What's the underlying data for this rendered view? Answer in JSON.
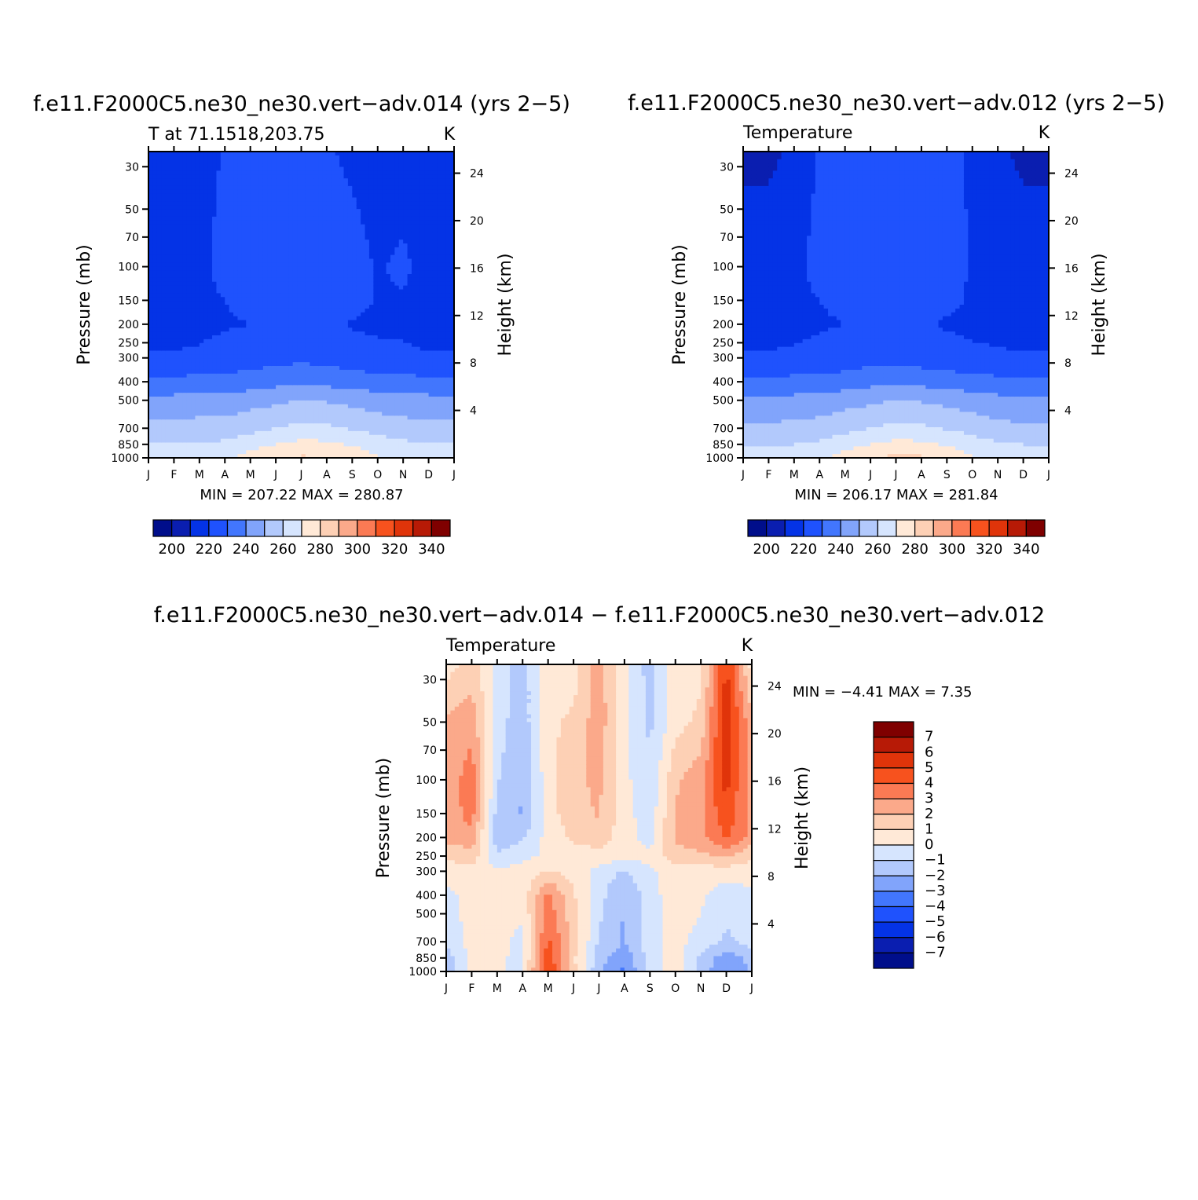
{
  "figure": {
    "panel_a_title": "f.e11.F2000C5.ne30_ne30.vert−adv.014 (yrs  2−5)",
    "panel_b_title": "f.e11.F2000C5.ne30_ne30.vert−adv.012 (yrs  2−5)",
    "panel_c_title": "f.e11.F2000C5.ne30_ne30.vert−adv.014  −  f.e11.F2000C5.ne30_ne30.vert−adv.012"
  },
  "chart_data": [
    {
      "type": "heatmap",
      "title": "f.e11.F2000C5.ne30_ne30.vert−adv.014 (yrs  2−5)",
      "subtitle": "T  at  71.1518,203.75",
      "units": "K",
      "ylabel": "Pressure  (mb)",
      "y2label": "Height  (km)",
      "x_ticks": [
        "J",
        "F",
        "M",
        "A",
        "M",
        "J",
        "J",
        "A",
        "S",
        "O",
        "N",
        "D",
        "J"
      ],
      "y_ticks": [
        30,
        50,
        70,
        100,
        150,
        200,
        250,
        300,
        400,
        500,
        700,
        850,
        1000
      ],
      "y2_ticks": [
        24,
        20,
        16,
        12,
        8,
        4
      ],
      "pressure_range_mb": [
        25,
        1000
      ],
      "min": 207.22,
      "max": 280.87,
      "stats": "MIN  =  207.22  MAX  =  280.87",
      "levels": [
        200,
        210,
        220,
        230,
        240,
        250,
        260,
        270,
        280,
        290,
        300,
        310,
        320,
        330,
        340
      ],
      "colorbar_labels": [
        "200",
        "220",
        "240",
        "260",
        "280",
        "300",
        "320",
        "340"
      ],
      "colors": [
        "#000e8b",
        "#0a1eb0",
        "#0433e6",
        "#1f52fd",
        "#4276fd",
        "#81a4fb",
        "#b2c9fc",
        "#d6e5fe",
        "#ffe9d7",
        "#fdd0b5",
        "#fba98a",
        "#fb7a54",
        "#f7521e",
        "#e0340a",
        "#b71a06",
        "#7f0000"
      ],
      "month_lines": {
        "pressures": [
          25,
          100,
          150,
          200,
          300,
          400,
          500,
          700,
          850,
          950,
          1000
        ],
        "z_months": [
          [
            213,
            213,
            215,
            221,
            221,
            221,
            221,
            221,
            218,
            215,
            214,
            213,
            213
          ],
          [
            216,
            216,
            217,
            224,
            226,
            226,
            226,
            226,
            224,
            219,
            222,
            216,
            216
          ],
          [
            216,
            216,
            217,
            220,
            223,
            226,
            226,
            226,
            224,
            219,
            219,
            216,
            216
          ],
          [
            216,
            216,
            217,
            219,
            220,
            222,
            224,
            222,
            219,
            218,
            218,
            216,
            216
          ],
          [
            221,
            221,
            222,
            224,
            225,
            226,
            228,
            226,
            225,
            223,
            222,
            221,
            221
          ],
          [
            233,
            233,
            233,
            233,
            235,
            237,
            238,
            237,
            235,
            234,
            233,
            233,
            233
          ],
          [
            243,
            243,
            244,
            244,
            246,
            248,
            250,
            249,
            247,
            245,
            244,
            243,
            243
          ],
          [
            253,
            253,
            254,
            254,
            257,
            260,
            263,
            262,
            259,
            256,
            254,
            253,
            253
          ],
          [
            260,
            260,
            261,
            262,
            266,
            270,
            273,
            272,
            269,
            265,
            262,
            261,
            260
          ],
          [
            264,
            264,
            265,
            267,
            272,
            276,
            279,
            278,
            275,
            269,
            266,
            265,
            264
          ],
          [
            266,
            266,
            267,
            268,
            273,
            277,
            281,
            280,
            276,
            270,
            267,
            266,
            266
          ]
        ]
      }
    },
    {
      "type": "heatmap",
      "title": "f.e11.F2000C5.ne30_ne30.vert−adv.012 (yrs  2−5)",
      "subtitle": "Temperature",
      "units": "K",
      "ylabel": "Pressure  (mb)",
      "y2label": "Height  (km)",
      "x_ticks": [
        "J",
        "F",
        "M",
        "A",
        "M",
        "J",
        "J",
        "A",
        "S",
        "O",
        "N",
        "D",
        "J"
      ],
      "y_ticks": [
        30,
        50,
        70,
        100,
        150,
        200,
        250,
        300,
        400,
        500,
        700,
        850,
        1000
      ],
      "y2_ticks": [
        24,
        20,
        16,
        12,
        8,
        4
      ],
      "pressure_range_mb": [
        25,
        1000
      ],
      "min": 206.17,
      "max": 281.84,
      "stats": "MIN  =  206.17  MAX  =  281.84",
      "levels": [
        200,
        210,
        220,
        230,
        240,
        250,
        260,
        270,
        280,
        290,
        300,
        310,
        320,
        330,
        340
      ],
      "colorbar_labels": [
        "200",
        "220",
        "240",
        "260",
        "280",
        "300",
        "320",
        "340"
      ],
      "colors": [
        "#000e8b",
        "#0a1eb0",
        "#0433e6",
        "#1f52fd",
        "#4276fd",
        "#81a4fb",
        "#b2c9fc",
        "#d6e5fe",
        "#ffe9d7",
        "#fdd0b5",
        "#fba98a",
        "#fb7a54",
        "#f7521e",
        "#e0340a",
        "#b71a06",
        "#7f0000"
      ],
      "month_lines": {
        "pressures": [
          25,
          100,
          150,
          200,
          300,
          400,
          500,
          700,
          850,
          950,
          1000
        ],
        "z_months": [
          [
            208,
            208,
            212,
            221,
            224,
            224,
            224,
            224,
            222,
            219,
            212,
            208,
            208
          ],
          [
            215,
            215,
            217,
            224,
            226,
            226,
            226,
            226,
            224,
            219,
            216,
            215,
            215
          ],
          [
            216,
            216,
            217,
            220,
            222,
            225,
            226,
            225,
            222,
            219,
            218,
            216,
            216
          ],
          [
            216,
            216,
            217,
            219,
            220,
            221,
            222,
            221,
            219,
            218,
            218,
            216,
            216
          ],
          [
            221,
            221,
            222,
            223,
            224,
            226,
            227,
            225,
            224,
            222,
            221,
            221,
            221
          ],
          [
            232,
            232,
            233,
            233,
            235,
            237,
            238,
            237,
            235,
            234,
            233,
            232,
            232
          ],
          [
            242,
            242,
            243,
            244,
            246,
            248,
            250,
            249,
            247,
            245,
            243,
            242,
            242
          ],
          [
            252,
            252,
            253,
            254,
            257,
            260,
            263,
            262,
            259,
            256,
            253,
            252,
            252
          ],
          [
            259,
            259,
            260,
            262,
            266,
            270,
            273,
            272,
            269,
            265,
            261,
            260,
            259
          ],
          [
            263,
            263,
            265,
            267,
            272,
            276,
            280,
            279,
            275,
            269,
            265,
            264,
            263
          ],
          [
            265,
            265,
            266,
            268,
            273,
            278,
            282,
            281,
            276,
            270,
            266,
            265,
            265
          ]
        ]
      }
    },
    {
      "type": "heatmap",
      "title": "f.e11.F2000C5.ne30_ne30.vert−adv.014  −  f.e11.F2000C5.ne30_ne30.vert−adv.012",
      "subtitle": "Temperature",
      "units": "K",
      "ylabel": "Pressure  (mb)",
      "y2label": "Height  (km)",
      "x_ticks": [
        "J",
        "F",
        "M",
        "A",
        "M",
        "J",
        "J",
        "A",
        "S",
        "O",
        "N",
        "D",
        "J"
      ],
      "y_ticks": [
        30,
        50,
        70,
        100,
        150,
        200,
        250,
        300,
        400,
        500,
        700,
        850,
        1000
      ],
      "y2_ticks": [
        24,
        20,
        16,
        12,
        8,
        4
      ],
      "pressure_range_mb": [
        25,
        1000
      ],
      "min": -4.41,
      "max": 7.35,
      "stats": "MIN  =    −4.41  MAX  =      7.35",
      "levels": [
        -7,
        -6,
        -5,
        -4,
        -3,
        -2,
        -1,
        0,
        1,
        2,
        3,
        4,
        5,
        6,
        7
      ],
      "colorbar_labels": [
        "7",
        "6",
        "5",
        "4",
        "3",
        "2",
        "1",
        "0",
        "−1",
        "−2",
        "−3",
        "−4",
        "−5",
        "−6",
        "−7"
      ],
      "colors": [
        "#000e8b",
        "#0a1eb0",
        "#0433e6",
        "#1f52fd",
        "#4276fd",
        "#81a4fb",
        "#b2c9fc",
        "#d6e5fe",
        "#ffe9d7",
        "#fdd0b5",
        "#fba98a",
        "#fb7a54",
        "#f7521e",
        "#e0340a",
        "#b71a06",
        "#7f0000"
      ],
      "month_lines": {
        "pressures": [
          25,
          50,
          100,
          150,
          200,
          250,
          300,
          400,
          700,
          850,
          1000
        ],
        "z_months": [
          [
            0.5,
            1.5,
            -0.3,
            -1.5,
            0.5,
            0.5,
            2.5,
            0.3,
            -1.5,
            0.5,
            0.6,
            5.2,
            0.5
          ],
          [
            2.2,
            2.6,
            -0.6,
            -1.6,
            0.8,
            1.2,
            2.6,
            0.3,
            -1.2,
            0.6,
            1.3,
            5.8,
            2.2
          ],
          [
            2.3,
            3.6,
            -0.9,
            -1.9,
            0.6,
            1.8,
            2.2,
            0.3,
            -0.9,
            1.8,
            2.6,
            5.4,
            2.3
          ],
          [
            2.4,
            3.4,
            -1.4,
            -2.1,
            0.6,
            1.6,
            2.1,
            0.4,
            -0.6,
            2.1,
            2.7,
            4.8,
            2.4
          ],
          [
            2.6,
            2.6,
            -1.6,
            -1.2,
            0.4,
            1.2,
            1.6,
            0.4,
            -0.4,
            2.2,
            2.6,
            4.2,
            2.6
          ],
          [
            1.1,
            1.6,
            -0.9,
            -0.3,
            0.2,
            0.5,
            0.6,
            0.4,
            0.3,
            1.6,
            1.8,
            2.2,
            1.1
          ],
          [
            0.6,
            0.6,
            0.2,
            0.4,
            1.1,
            0.6,
            -0.4,
            -1.1,
            -0.2,
            0.6,
            0.5,
            0.4,
            0.6
          ],
          [
            -0.3,
            0.4,
            0.3,
            0.4,
            3.3,
            1.1,
            -0.6,
            -2.1,
            -0.3,
            0.4,
            0.2,
            -0.6,
            -0.3
          ],
          [
            -0.6,
            0.3,
            0.3,
            -0.3,
            4.2,
            1.6,
            -1.1,
            -2.1,
            -0.4,
            0.3,
            -0.3,
            -1.2,
            -0.6
          ],
          [
            -1.6,
            0.3,
            0.2,
            -0.3,
            4.7,
            1.2,
            -1.6,
            -2.6,
            -0.6,
            0.6,
            -1.2,
            -2.6,
            -1.6
          ],
          [
            -1.8,
            0.2,
            0.1,
            -0.2,
            5.2,
            1.3,
            -1.8,
            -3.2,
            -0.7,
            0.8,
            -1.3,
            -3.1,
            -1.8
          ]
        ]
      }
    }
  ]
}
